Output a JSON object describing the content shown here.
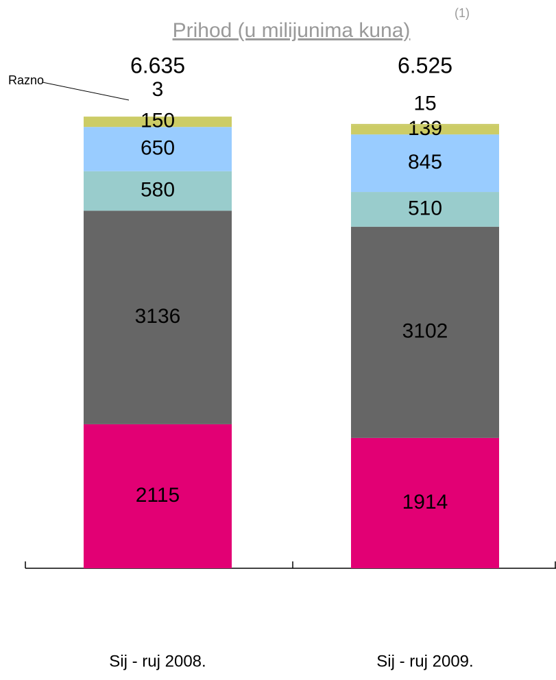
{
  "chart_data": {
    "type": "stacked_bar",
    "title": "Prihod (u milijunima kuna)",
    "title_note": "(1)",
    "categories": [
      "Sij - ruj 2008.",
      "Sij - ruj 2009."
    ],
    "series": [
      {
        "color": "#e20074",
        "values": [
          2115,
          1914
        ]
      },
      {
        "color": "#666666",
        "values": [
          3136,
          3102
        ]
      },
      {
        "color": "#99cccc",
        "values": [
          580,
          510
        ]
      },
      {
        "color": "#99ccff",
        "values": [
          650,
          845
        ]
      },
      {
        "color": "#cccc66",
        "values": [
          150,
          139
        ]
      },
      {
        "name": "Razno",
        "color": "#c8c860",
        "values": [
          3,
          15
        ]
      }
    ],
    "totals": {
      "values": [
        6635,
        6525
      ],
      "value_labels": [
        "6.635",
        "6.525"
      ]
    }
  }
}
